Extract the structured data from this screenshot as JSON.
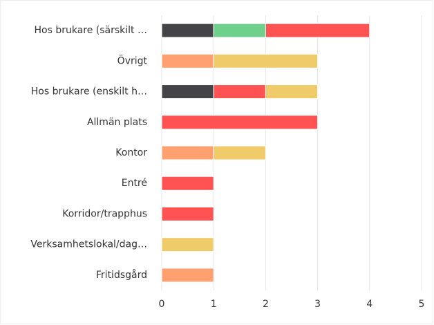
{
  "chart_data": {
    "type": "bar",
    "orientation": "horizontal",
    "stacked": true,
    "categories": [
      "Hos brukare (särskilt …",
      "Övrigt",
      "Hos brukare (enskilt h…",
      "Allmän plats",
      "Kontor",
      "Entré",
      "Korridor/trapphus",
      "Verksamhetslokal/dag…",
      "Fritidsgård"
    ],
    "series": [
      {
        "color": "#434348",
        "values": [
          1,
          null,
          1,
          null,
          null,
          null,
          null,
          null,
          null
        ]
      },
      {
        "color": "#6fd08c",
        "values": [
          1,
          null,
          null,
          null,
          null,
          null,
          null,
          null,
          null
        ]
      },
      {
        "color": "#ffa071",
        "values": [
          null,
          1,
          null,
          null,
          1,
          null,
          null,
          null,
          1
        ]
      },
      {
        "color": "#ff5252",
        "values": [
          2,
          null,
          1,
          3,
          null,
          1,
          1,
          null,
          null
        ]
      },
      {
        "color": "#f0cb69",
        "values": [
          null,
          2,
          1,
          null,
          1,
          null,
          null,
          1,
          null
        ]
      }
    ],
    "xlim": [
      0,
      5
    ],
    "xticks": [
      0,
      1,
      2,
      3,
      4,
      5
    ],
    "grid": true
  }
}
